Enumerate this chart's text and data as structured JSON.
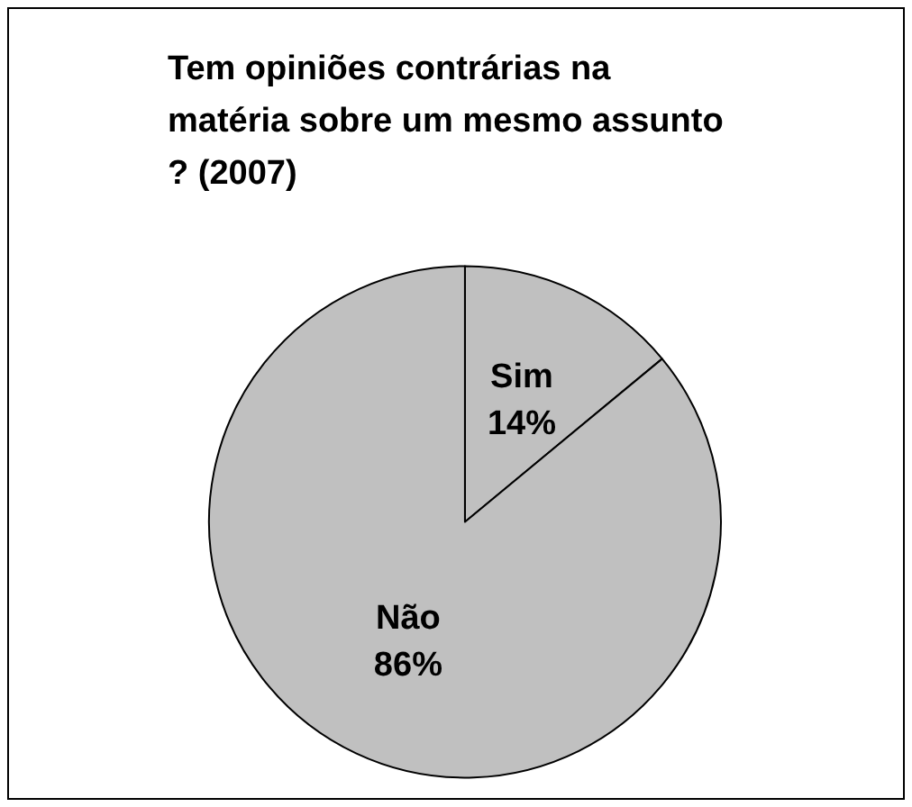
{
  "chart_data": {
    "type": "pie",
    "title": "Tem opiniões contrárias na matéria sobre um mesmo assunto? (2007)",
    "categories": [
      "Sim",
      "Não"
    ],
    "values": [
      14,
      86
    ],
    "value_labels": [
      "14%",
      "86%"
    ],
    "colors": [
      "#c0c0c0",
      "#c0c0c0"
    ],
    "legend": false
  }
}
